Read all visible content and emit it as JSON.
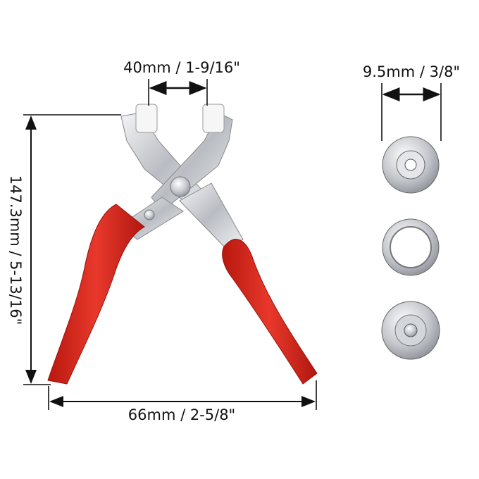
{
  "dimensions": {
    "jaw_opening": "40mm / 1-9/16\"",
    "snap_diameter": "9.5mm / 3/8\"",
    "height": "147.3mm / 5-13/16\"",
    "width": "66mm / 2-5/8\""
  },
  "colors": {
    "handle": "#d8291f",
    "metal": "#c9ccd1",
    "line": "#111111"
  }
}
